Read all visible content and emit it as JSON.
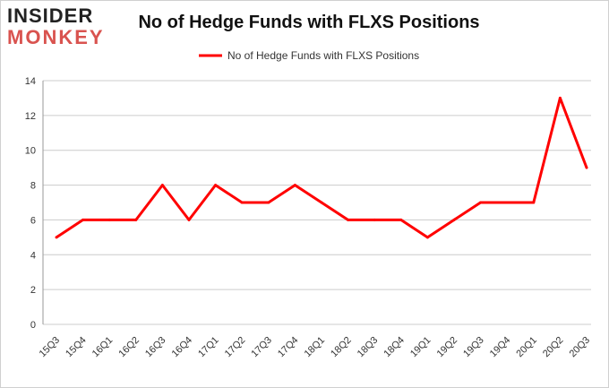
{
  "logo": {
    "line1": "INSIDER",
    "line2": "MONKEY"
  },
  "chart_data": {
    "type": "line",
    "title": "No of Hedge Funds with FLXS Positions",
    "xlabel": "",
    "ylabel": "",
    "categories": [
      "15Q3",
      "15Q4",
      "16Q1",
      "16Q2",
      "16Q3",
      "16Q4",
      "17Q1",
      "17Q2",
      "17Q3",
      "17Q4",
      "18Q1",
      "18Q2",
      "18Q3",
      "18Q4",
      "19Q1",
      "19Q2",
      "19Q3",
      "19Q4",
      "20Q1",
      "20Q2",
      "20Q3"
    ],
    "series": [
      {
        "name": "No of Hedge Funds with FLXS Positions",
        "color": "#ff0000",
        "values": [
          5,
          6,
          6,
          6,
          8,
          6,
          8,
          7,
          7,
          8,
          7,
          6,
          6,
          6,
          5,
          6,
          7,
          7,
          7,
          13,
          9
        ]
      }
    ],
    "ylim": [
      0,
      14
    ],
    "yticks": [
      0,
      2,
      4,
      6,
      8,
      10,
      12,
      14
    ],
    "grid": true,
    "legend": "top-center"
  }
}
